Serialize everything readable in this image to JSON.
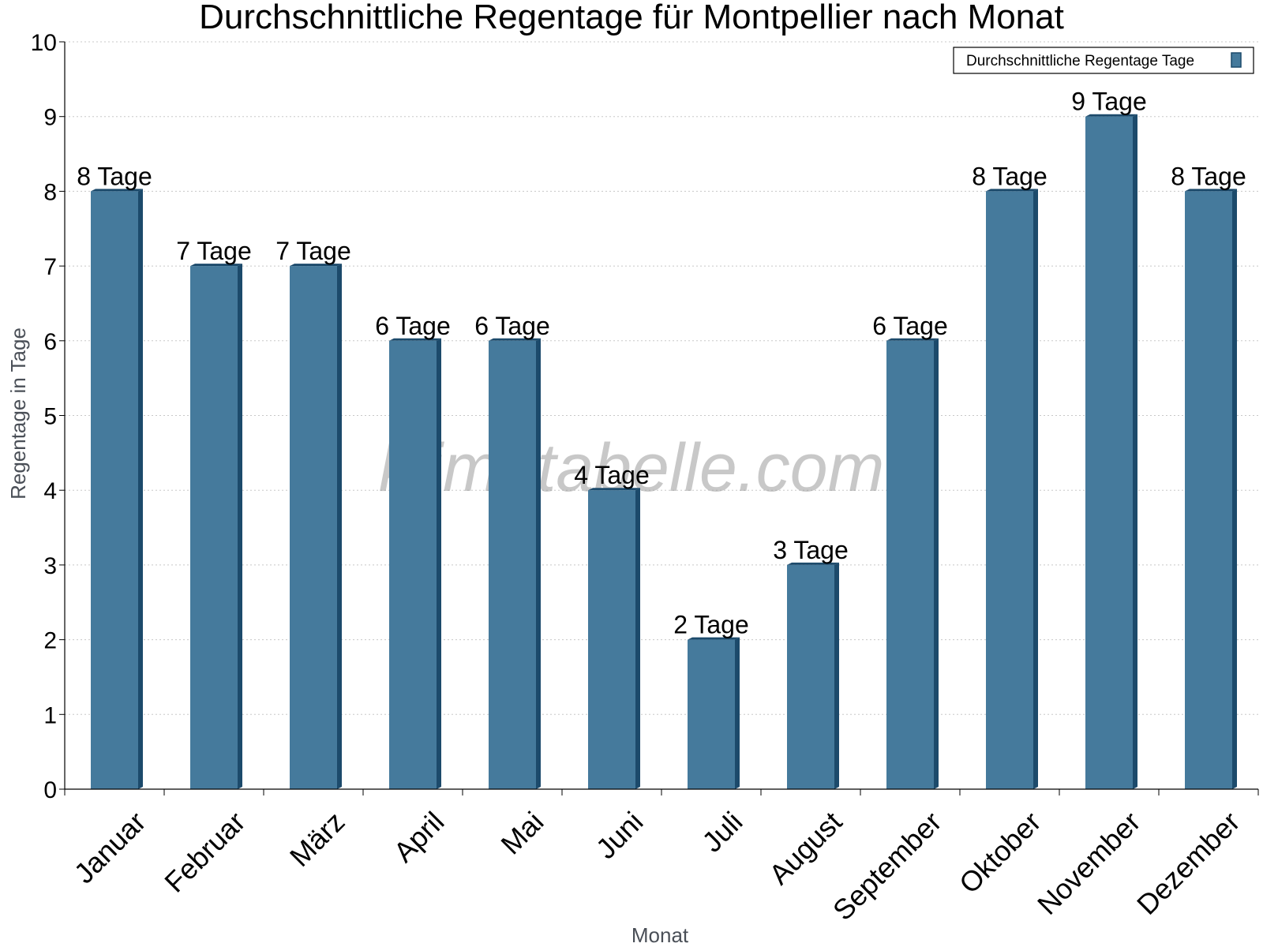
{
  "chart_data": {
    "type": "bar",
    "title": "Durchschnittliche Regentage für Montpellier nach Monat",
    "xlabel": "Monat",
    "ylabel": "Regentage in Tage",
    "ylim": [
      0,
      10
    ],
    "yticks": [
      "0",
      "1",
      "2",
      "3",
      "4",
      "5",
      "6",
      "7",
      "8",
      "9",
      "10"
    ],
    "grid": true,
    "legend_position": "top-right",
    "categories": [
      "Januar",
      "Februar",
      "März",
      "April",
      "Mai",
      "Juni",
      "Juli",
      "August",
      "September",
      "Oktober",
      "November",
      "Dezember"
    ],
    "series": [
      {
        "name": "Durchschnittliche Regentage Tage",
        "values": [
          8,
          7,
          7,
          6,
          6,
          4,
          2,
          3,
          6,
          8,
          9,
          8
        ],
        "labels": [
          "8 Tage",
          "7 Tage",
          "7 Tage",
          "6 Tage",
          "6 Tage",
          "4 Tage",
          "2 Tage",
          "3 Tage",
          "6 Tage",
          "8 Tage",
          "9 Tage",
          "8 Tage"
        ],
        "color": "#457a9c",
        "edge_color": "#1c4a6b"
      }
    ]
  },
  "watermark": "klimatabelle.com"
}
